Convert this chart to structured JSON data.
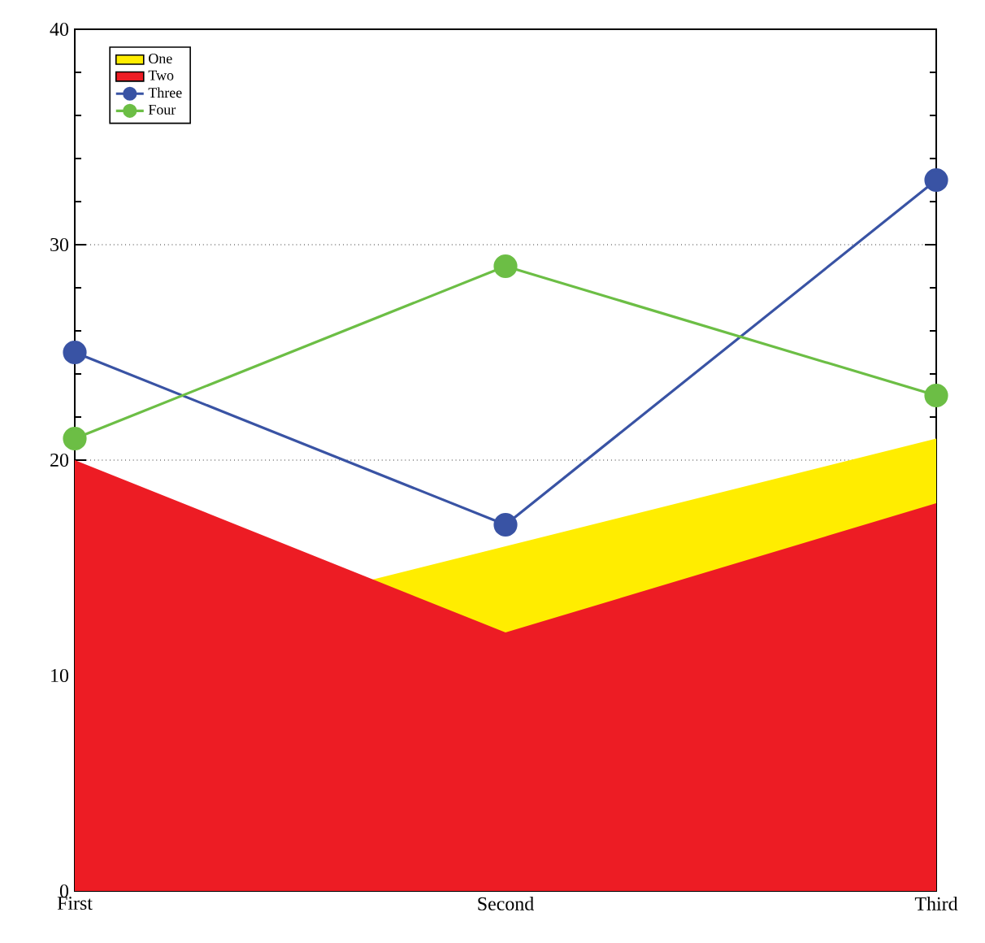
{
  "chart_data": {
    "type": "line",
    "categories": [
      "First",
      "Second",
      "Third"
    ],
    "series": [
      {
        "name": "One",
        "type": "area",
        "color": "#ffed00",
        "values": [
          11,
          16,
          21
        ]
      },
      {
        "name": "Two",
        "type": "area",
        "color": "#ed1c24",
        "values": [
          20,
          12,
          18
        ]
      },
      {
        "name": "Three",
        "color": "#3953a4",
        "values": [
          25,
          17,
          33
        ],
        "marker": "circle"
      },
      {
        "name": "Four",
        "color": "#6cbe45",
        "values": [
          21,
          29,
          23
        ],
        "marker": "circle"
      }
    ],
    "ylim": [
      0,
      40
    ],
    "yticks": [
      0,
      10,
      20,
      30,
      40
    ],
    "grid": "y",
    "legend": "top left"
  }
}
